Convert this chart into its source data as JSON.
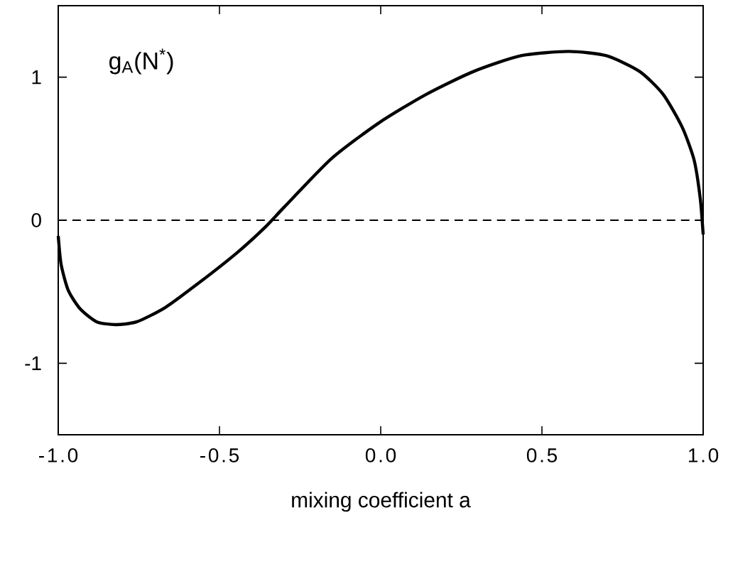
{
  "chart_data": {
    "type": "line",
    "xlabel": "mixing coefficient a",
    "annotations": [
      "g$_{A}$(N$^{*}$)"
    ],
    "x": [
      -1,
      -0.991,
      -0.969,
      -0.932,
      -0.881,
      -0.822,
      -0.756,
      -0.668,
      -0.565,
      -0.447,
      -0.359,
      -0.3,
      -0.153,
      -0.006,
      0.141,
      0.288,
      0.435,
      0.582,
      0.7,
      0.803,
      0.876,
      0.935,
      0.972,
      0.991,
      1.0
    ],
    "series": [
      {
        "color": "#000000",
        "values": [
          -0.11,
          -0.31,
          -0.49,
          -0.62,
          -0.71,
          -0.73,
          -0.71,
          -0.61,
          -0.44,
          -0.23,
          -0.05,
          0.09,
          0.43,
          0.68,
          0.88,
          1.04,
          1.15,
          1.18,
          1.15,
          1.04,
          0.88,
          0.65,
          0.42,
          0.15,
          -0.1
        ]
      }
    ],
    "xlim": [
      -1,
      1
    ],
    "ylim": [
      -1.5,
      1.5
    ],
    "xticks": [
      {
        "value": -1,
        "label": "-1.0"
      },
      {
        "value": -0.5,
        "label": "-0.5"
      },
      {
        "value": 0,
        "label": "0.0"
      },
      {
        "value": 0.5,
        "label": "0.5"
      },
      {
        "value": 1,
        "label": "1.0"
      }
    ],
    "yticks": [
      -1,
      0,
      1
    ],
    "ref_lines": [
      {
        "axis": "y",
        "value": 0,
        "line_style": "dashed"
      }
    ],
    "grid": false,
    "marker": "none",
    "line_style": "solid"
  }
}
